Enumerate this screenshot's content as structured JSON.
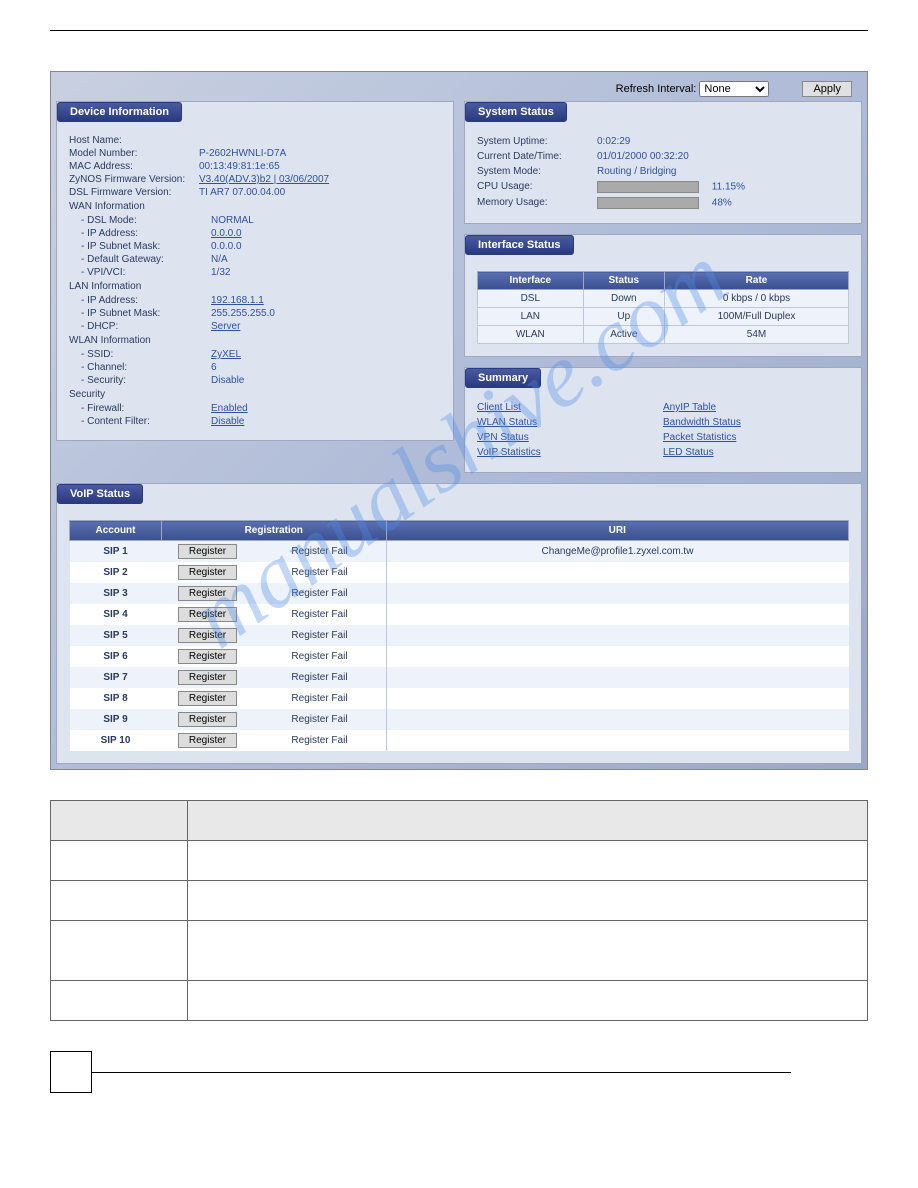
{
  "topbar": {
    "refresh_label": "Refresh Interval:",
    "refresh_option": "None",
    "apply_label": "Apply"
  },
  "device_info": {
    "title": "Device Information",
    "host_name_label": "Host Name:",
    "host_name": "",
    "model_label": "Model Number:",
    "model": "P-2602HWNLI-D7A",
    "mac_label": "MAC Address:",
    "mac": "00:13:49:81:1e:65",
    "zynos_label": "ZyNOS Firmware Version:",
    "zynos": "V3.40(ADV.3)b2 | 03/06/2007",
    "dslfw_label": "DSL Firmware Version:",
    "dslfw": "TI AR7 07.00.04.00",
    "wan_header": "WAN Information",
    "dsl_mode_label": "- DSL Mode:",
    "dsl_mode": "NORMAL",
    "wan_ip_label": "- IP Address:",
    "wan_ip": "0.0.0.0",
    "wan_subnet_label": "- IP Subnet Mask:",
    "wan_subnet": "0.0.0.0",
    "gateway_label": "- Default Gateway:",
    "gateway": "N/A",
    "vpi_label": "- VPI/VCI:",
    "vpi": "1/32",
    "lan_header": "LAN Information",
    "lan_ip_label": "- IP Address:",
    "lan_ip": "192.168.1.1",
    "lan_subnet_label": "- IP Subnet Mask:",
    "lan_subnet": "255.255.255.0",
    "dhcp_label": "- DHCP:",
    "dhcp": "Server",
    "wlan_header": "WLAN Information",
    "ssid_label": "- SSID:",
    "ssid": "ZyXEL",
    "channel_label": "- Channel:",
    "channel": "6",
    "security_label": "- Security:",
    "security": "Disable",
    "sec_header": "Security",
    "firewall_label": "- Firewall:",
    "firewall": "Enabled",
    "cf_label": "- Content Filter:",
    "cf": "Disable"
  },
  "system_status": {
    "title": "System Status",
    "uptime_label": "System Uptime:",
    "uptime": "0:02:29",
    "datetime_label": "Current Date/Time:",
    "datetime": "01/01/2000 00:32:20",
    "mode_label": "System Mode:",
    "mode": "Routing / Bridging",
    "cpu_label": "CPU Usage:",
    "cpu_pct": "11.15%",
    "cpu_width": 11,
    "mem_label": "Memory Usage:",
    "mem_pct": "48%",
    "mem_width": 48
  },
  "interface_status": {
    "title": "Interface Status",
    "headers": [
      "Interface",
      "Status",
      "Rate"
    ],
    "rows": [
      {
        "iface": "DSL",
        "status": "Down",
        "rate": "0 kbps / 0 kbps"
      },
      {
        "iface": "LAN",
        "status": "Up",
        "rate": "100M/Full Duplex"
      },
      {
        "iface": "WLAN",
        "status": "Active",
        "rate": "54M"
      }
    ]
  },
  "summary": {
    "title": "Summary",
    "col1": [
      "Client List",
      "WLAN Status",
      "VPN Status",
      "VoIP Statistics"
    ],
    "col2": [
      "AnyIP Table",
      "Bandwidth Status",
      "Packet Statistics",
      "LED Status"
    ]
  },
  "voip": {
    "title": "VoIP Status",
    "headers": {
      "account": "Account",
      "registration": "Registration",
      "uri": "URI"
    },
    "register_btn": "Register",
    "rows": [
      {
        "acct": "SIP 1",
        "status": "Register Fail",
        "uri": "ChangeMe@profile1.zyxel.com.tw"
      },
      {
        "acct": "SIP 2",
        "status": "Register Fail",
        "uri": ""
      },
      {
        "acct": "SIP 3",
        "status": "Register Fail",
        "uri": ""
      },
      {
        "acct": "SIP 4",
        "status": "Register Fail",
        "uri": ""
      },
      {
        "acct": "SIP 5",
        "status": "Register Fail",
        "uri": ""
      },
      {
        "acct": "SIP 6",
        "status": "Register Fail",
        "uri": ""
      },
      {
        "acct": "SIP 7",
        "status": "Register Fail",
        "uri": ""
      },
      {
        "acct": "SIP 8",
        "status": "Register Fail",
        "uri": ""
      },
      {
        "acct": "SIP 9",
        "status": "Register Fail",
        "uri": ""
      },
      {
        "acct": "SIP 10",
        "status": "Register Fail",
        "uri": ""
      }
    ]
  },
  "watermark": "manualshive.com"
}
